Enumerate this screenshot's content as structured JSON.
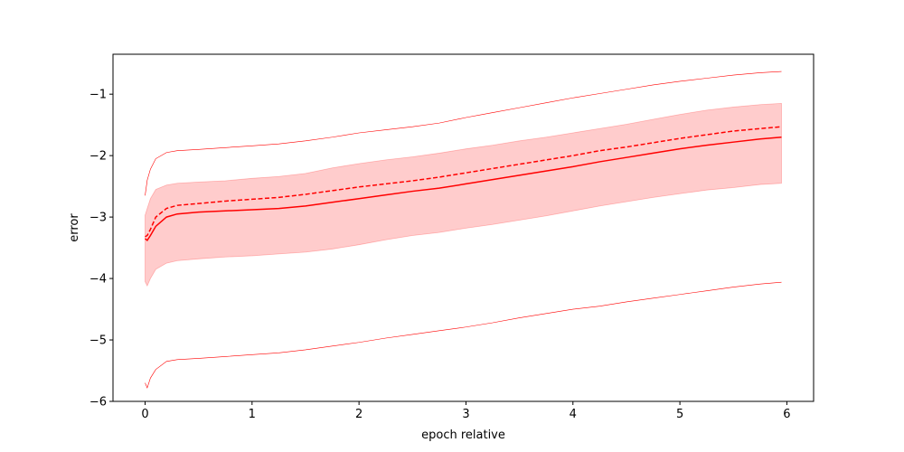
{
  "chart_data": {
    "type": "line",
    "title": "",
    "xlabel": "epoch relative",
    "ylabel": "error",
    "xlim": [
      -0.3,
      6.25
    ],
    "ylim": [
      -6.0,
      -0.35
    ],
    "grid": false,
    "legend": "none",
    "xticks": [
      0,
      1,
      2,
      3,
      4,
      5,
      6
    ],
    "xtick_labels": [
      "0",
      "1",
      "2",
      "3",
      "4",
      "5",
      "6"
    ],
    "yticks": [
      -6,
      -5,
      -4,
      -3,
      -2,
      -1
    ],
    "ytick_labels": [
      "−6",
      "−5",
      "−4",
      "−3",
      "−2",
      "−1"
    ],
    "colors": {
      "line": "#ff0000",
      "band": "#ff0000",
      "band_opacity": 0.2,
      "axes": "#000000"
    },
    "x": [
      0,
      0.02,
      0.05,
      0.1,
      0.2,
      0.3,
      0.5,
      0.75,
      1.0,
      1.25,
      1.5,
      1.75,
      2.0,
      2.25,
      2.5,
      2.75,
      3.0,
      3.25,
      3.5,
      3.75,
      4.0,
      4.25,
      4.5,
      4.75,
      5.0,
      5.25,
      5.5,
      5.75,
      5.95
    ],
    "series": [
      {
        "style": "solid",
        "values": [
          -3.35,
          -3.38,
          -3.3,
          -3.15,
          -3.0,
          -2.95,
          -2.92,
          -2.9,
          -2.88,
          -2.86,
          -2.82,
          -2.76,
          -2.7,
          -2.64,
          -2.58,
          -2.53,
          -2.46,
          -2.39,
          -2.32,
          -2.25,
          -2.18,
          -2.1,
          -2.03,
          -1.96,
          -1.89,
          -1.83,
          -1.78,
          -1.73,
          -1.7
        ]
      },
      {
        "style": "dashed",
        "values": [
          -3.32,
          -3.3,
          -3.2,
          -3.0,
          -2.86,
          -2.81,
          -2.78,
          -2.74,
          -2.71,
          -2.68,
          -2.63,
          -2.57,
          -2.51,
          -2.46,
          -2.41,
          -2.35,
          -2.28,
          -2.21,
          -2.14,
          -2.07,
          -2.0,
          -1.92,
          -1.86,
          -1.79,
          -1.72,
          -1.66,
          -1.6,
          -1.56,
          -1.53
        ]
      },
      {
        "style": "band",
        "lower": [
          -4.05,
          -4.12,
          -4.0,
          -3.85,
          -3.75,
          -3.71,
          -3.68,
          -3.65,
          -3.63,
          -3.6,
          -3.57,
          -3.52,
          -3.45,
          -3.37,
          -3.3,
          -3.25,
          -3.18,
          -3.12,
          -3.05,
          -2.98,
          -2.9,
          -2.82,
          -2.75,
          -2.68,
          -2.62,
          -2.56,
          -2.52,
          -2.47,
          -2.45
        ],
        "upper": [
          -2.97,
          -2.86,
          -2.7,
          -2.55,
          -2.48,
          -2.45,
          -2.43,
          -2.41,
          -2.37,
          -2.34,
          -2.29,
          -2.2,
          -2.13,
          -2.07,
          -2.02,
          -1.96,
          -1.89,
          -1.83,
          -1.76,
          -1.7,
          -1.63,
          -1.56,
          -1.49,
          -1.41,
          -1.33,
          -1.26,
          -1.21,
          -1.17,
          -1.15
        ]
      },
      {
        "style": "thin-upper",
        "values": [
          -2.65,
          -2.4,
          -2.22,
          -2.05,
          -1.95,
          -1.92,
          -1.9,
          -1.87,
          -1.84,
          -1.81,
          -1.76,
          -1.7,
          -1.63,
          -1.58,
          -1.53,
          -1.47,
          -1.38,
          -1.3,
          -1.22,
          -1.14,
          -1.06,
          -0.99,
          -0.92,
          -0.85,
          -0.79,
          -0.74,
          -0.69,
          -0.65,
          -0.63
        ]
      },
      {
        "style": "thin-lower",
        "values": [
          -5.7,
          -5.78,
          -5.62,
          -5.48,
          -5.35,
          -5.32,
          -5.3,
          -5.27,
          -5.24,
          -5.21,
          -5.16,
          -5.1,
          -5.04,
          -4.97,
          -4.91,
          -4.85,
          -4.79,
          -4.72,
          -4.64,
          -4.57,
          -4.5,
          -4.45,
          -4.38,
          -4.32,
          -4.26,
          -4.2,
          -4.14,
          -4.09,
          -4.06
        ]
      }
    ]
  }
}
